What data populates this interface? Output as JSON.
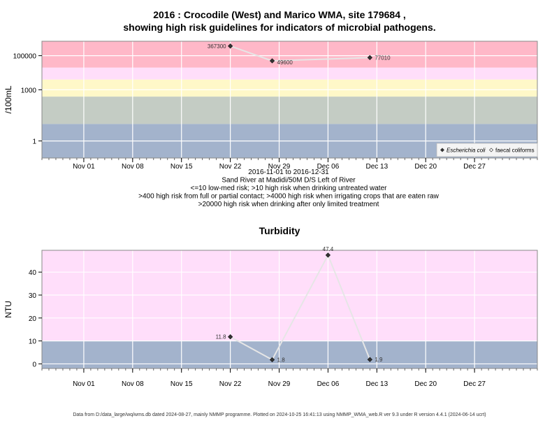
{
  "footer": "Data from D:/data_large/wq/wms.db dated 2024-08-27, mainly NMMP programme. Plotted on 2024-10-25 16:41:13 using NMMP_WMA_web.R ver 9.3 under R version 4.4.1 (2024-06-14 ucrt)",
  "chart_data": [
    {
      "type": "scatter",
      "title": [
        "2016 : Crocodile (West) and Marico WMA, site 179684 ,",
        "showing high risk guidelines for indicators of microbial pathogens."
      ],
      "xlabel": "",
      "ylabel": "/100mL",
      "y_scale": "log10",
      "ylim": [
        0.1,
        700000
      ],
      "y_ticks": [
        1,
        1000,
        100000
      ],
      "y_tick_labels": [
        "1",
        "1000",
        "100000"
      ],
      "x_range": [
        "2016-10-26",
        "2017-01-05"
      ],
      "x_ticks": [
        "2016-11-01",
        "2016-11-08",
        "2016-11-15",
        "2016-11-22",
        "2016-11-29",
        "2016-12-06",
        "2016-12-13",
        "2016-12-20",
        "2016-12-27"
      ],
      "x_tick_labels": [
        "Nov 01",
        "Nov 08",
        "Nov 15",
        "Nov 22",
        "Nov 29",
        "Dec 06",
        "Dec 13",
        "Dec 20",
        "Dec 27"
      ],
      "grid": true,
      "bands": [
        {
          "from": 0.1,
          "to": 10,
          "color": "#a3b3cc"
        },
        {
          "from": 10,
          "to": 400,
          "color": "#c4ccc4"
        },
        {
          "from": 400,
          "to": 4000,
          "color": "#fff8c8"
        },
        {
          "from": 4000,
          "to": 20000,
          "color": "#ffdefa"
        },
        {
          "from": 20000,
          "to": 700000,
          "color": "#ffb8c8"
        }
      ],
      "series": [
        {
          "name": "Escherichia coli",
          "marker": "filled-diamond",
          "x": [
            "2016-11-22",
            "2016-11-28",
            "2016-12-12"
          ],
          "y": [
            367300,
            49600,
            77010
          ],
          "labels": [
            "367300",
            "49600",
            "77010"
          ]
        }
      ],
      "legend": {
        "position": "bottom-right",
        "entries": [
          {
            "label": "Escherichia coli",
            "marker": "filled-diamond",
            "italic": true
          },
          {
            "label": "faecal coliforms",
            "marker": "open-diamond",
            "italic": false
          }
        ]
      },
      "subtitle_lines": [
        "2016-11-01 to 2016-12-31",
        "Sand River at Madidi/50M D/S Left of River",
        "<=10 low-med risk; >10 high risk when drinking untreated water",
        ">400 high risk from full or partial contact; >4000 high risk when irrigating crops that are eaten raw",
        ">20000 high risk when drinking after only limited treatment"
      ]
    },
    {
      "type": "scatter",
      "title": [
        "Turbidity"
      ],
      "xlabel": "",
      "ylabel": "NTU",
      "ylim": [
        -2,
        49.5
      ],
      "y_ticks": [
        0,
        10,
        20,
        30,
        40
      ],
      "y_tick_labels": [
        "0",
        "10",
        "20",
        "30",
        "40"
      ],
      "x_range": [
        "2016-10-26",
        "2017-01-05"
      ],
      "x_ticks": [
        "2016-11-01",
        "2016-11-08",
        "2016-11-15",
        "2016-11-22",
        "2016-11-29",
        "2016-12-06",
        "2016-12-13",
        "2016-12-20",
        "2016-12-27"
      ],
      "x_tick_labels": [
        "Nov 01",
        "Nov 08",
        "Nov 15",
        "Nov 22",
        "Nov 29",
        "Dec 06",
        "Dec 13",
        "Dec 20",
        "Dec 27"
      ],
      "grid": true,
      "bands": [
        {
          "from": -2,
          "to": 10,
          "color": "#a3b3cc"
        },
        {
          "from": 10,
          "to": 49.5,
          "color": "#ffdefa"
        }
      ],
      "series": [
        {
          "name": "",
          "marker": "filled-diamond",
          "x": [
            "2016-11-22",
            "2016-11-28",
            "2016-12-06",
            "2016-12-12"
          ],
          "y": [
            11.8,
            1.8,
            47.4,
            1.9
          ],
          "labels": [
            "11.8",
            "1.8",
            "47.4",
            "1.9"
          ]
        }
      ]
    }
  ]
}
